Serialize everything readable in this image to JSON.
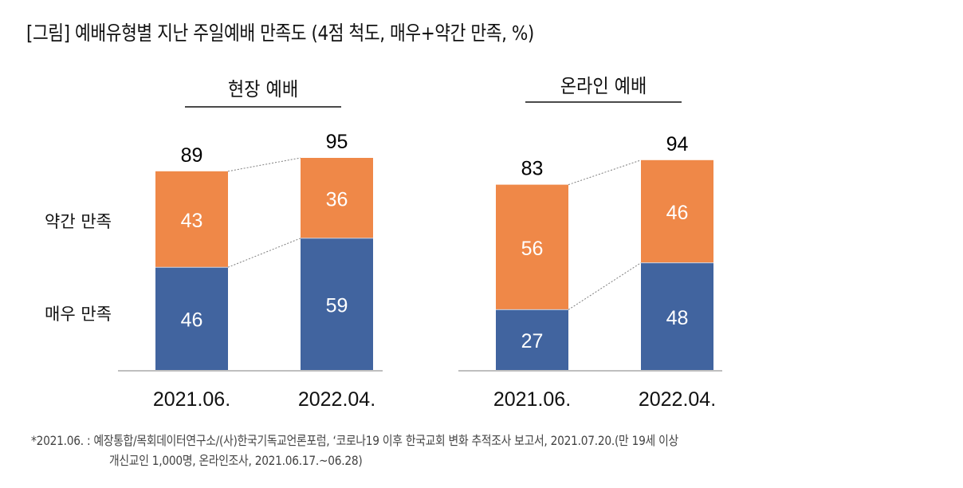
{
  "title": "[그림] 예배유형별 지난 주일예배 만족도 (4점 척도, 매우+약간 만족, %)",
  "row_labels": {
    "slightly": "약간 만족",
    "very": "매우 만족"
  },
  "colors": {
    "very": "#41649f",
    "slightly": "#ef8848",
    "axis": "#bfbfbf",
    "connector": "#7f7f7f"
  },
  "chart_data": [
    {
      "type": "bar",
      "stacked": true,
      "title": "현장 예배",
      "categories": [
        "2021.06.",
        "2022.04."
      ],
      "series": [
        {
          "name": "매우 만족",
          "values": [
            46,
            59
          ]
        },
        {
          "name": "약간 만족",
          "values": [
            43,
            36
          ]
        }
      ],
      "totals": [
        89,
        95
      ],
      "ylim": [
        0,
        100
      ],
      "grid": false,
      "unit": "%"
    },
    {
      "type": "bar",
      "stacked": true,
      "title": "온라인 예배",
      "categories": [
        "2021.06.",
        "2022.04."
      ],
      "series": [
        {
          "name": "매우 만족",
          "values": [
            27,
            48
          ]
        },
        {
          "name": "약간 만족",
          "values": [
            56,
            46
          ]
        }
      ],
      "totals": [
        83,
        94
      ],
      "ylim": [
        0,
        100
      ],
      "grid": false,
      "unit": "%"
    }
  ],
  "notes": [
    "*2021.06. : 예장통합/목회데이터연구소/(사)한국기독교언론포럼, ‘코로나19 이후 한국교회 변화 추적조사 보고서, 2021.07.20.(만 19세 이상",
    "개신교인 1,000명, 온라인조사, 2021.06.17.~06.28)"
  ]
}
